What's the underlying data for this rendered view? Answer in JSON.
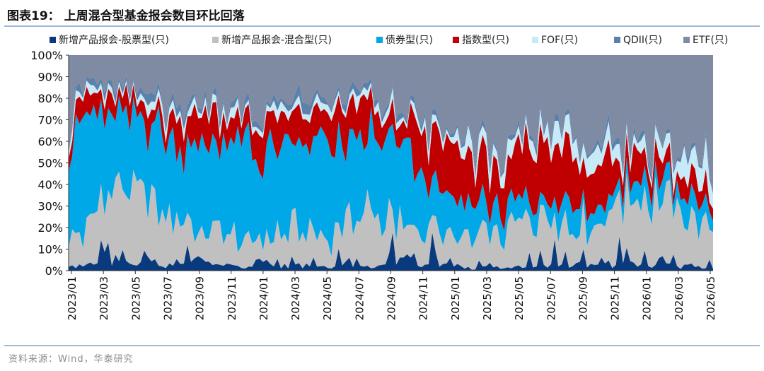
{
  "figure": {
    "title": "图表19：  上周混合型基金报会数目环比回落",
    "source": "资料来源：Wind，华泰研究"
  },
  "colors": {
    "stock": "#0a3a7e",
    "mixed": "#c0c0c0",
    "bond": "#00a8e8",
    "index": "#c00000",
    "fof": "#c7eaf8",
    "qdii": "#5b80aa",
    "etf": "#7f8aa3",
    "axis": "#333333",
    "rule": "#9fb8d4"
  },
  "chart_data": {
    "type": "area",
    "stacked": true,
    "percent_stacked": true,
    "title": "",
    "xlabel": "",
    "ylabel": "",
    "ylim": [
      0,
      100
    ],
    "y_ticks": [
      "0%",
      "10%",
      "20%",
      "30%",
      "40%",
      "50%",
      "60%",
      "70%",
      "80%",
      "90%",
      "100%"
    ],
    "x_ticks": [
      "2023/01",
      "2023/03",
      "2023/05",
      "2023/07",
      "2023/09",
      "2023/11",
      "2024/01",
      "2024/03",
      "2024/05",
      "2024/07",
      "2024/09",
      "2024/11",
      "2025/01",
      "2025/03",
      "2025/05",
      "2025/07",
      "2025/09",
      "2025/11",
      "2026/01",
      "2026/03",
      "2026/05"
    ],
    "legend_position": "top",
    "x_keyframes": [
      "2023/01",
      "2023/02",
      "2023/03",
      "2023/04",
      "2023/05",
      "2023/06",
      "2023/07",
      "2023/08",
      "2023/09",
      "2023/10",
      "2023/11",
      "2023/12",
      "2024/01",
      "2024/02",
      "2024/03",
      "2024/04",
      "2024/05",
      "2024/06",
      "2024/07",
      "2024/08",
      "2024/09",
      "2024/10",
      "2024/11",
      "2024/12",
      "2025/01",
      "2025/02",
      "2025/03",
      "2025/04",
      "2025/05",
      "2025/06",
      "2025/07",
      "2025/08",
      "2025/09",
      "2025/10",
      "2025/11",
      "2025/12",
      "2026/01",
      "2026/02",
      "2026/03",
      "2026/04",
      "2026/05"
    ],
    "series": [
      {
        "name": "新增产品报会-股票型(只)",
        "color_key": "stock",
        "values": [
          1,
          3,
          5,
          4,
          3,
          4,
          2,
          3,
          6,
          2,
          3,
          2,
          5,
          2,
          2,
          3,
          2,
          4,
          3,
          2,
          5,
          6,
          3,
          4,
          2,
          1,
          2,
          1,
          2,
          2,
          3,
          2,
          3,
          2,
          4,
          3,
          2,
          3,
          2,
          2,
          1
        ]
      },
      {
        "name": "新增产品报会-混合型(只)",
        "color_key": "mixed",
        "values": [
          10,
          15,
          28,
          35,
          38,
          24,
          26,
          18,
          12,
          15,
          14,
          12,
          10,
          15,
          18,
          16,
          14,
          18,
          22,
          25,
          20,
          12,
          14,
          15,
          13,
          12,
          12,
          16,
          20,
          24,
          22,
          18,
          20,
          22,
          26,
          34,
          30,
          28,
          26,
          22,
          18
        ]
      },
      {
        "name": "债券型(只)",
        "color_key": "bond",
        "values": [
          55,
          50,
          40,
          33,
          30,
          40,
          38,
          38,
          40,
          42,
          40,
          46,
          40,
          38,
          38,
          42,
          40,
          36,
          35,
          35,
          35,
          45,
          22,
          18,
          15,
          18,
          14,
          10,
          10,
          12,
          8,
          14,
          10,
          8,
          6,
          7,
          8,
          10,
          8,
          10,
          8
        ]
      },
      {
        "name": "指数型(只)",
        "color_key": "index",
        "values": [
          6,
          8,
          10,
          10,
          12,
          8,
          8,
          12,
          14,
          16,
          14,
          10,
          14,
          15,
          12,
          12,
          14,
          16,
          18,
          12,
          10,
          8,
          28,
          26,
          28,
          22,
          18,
          20,
          22,
          20,
          22,
          20,
          16,
          16,
          14,
          12,
          10,
          8,
          8,
          10,
          8
        ]
      },
      {
        "name": "FOF(只)",
        "color_key": "fof",
        "values": [
          3,
          4,
          3,
          3,
          2,
          3,
          4,
          3,
          3,
          3,
          4,
          3,
          3,
          4,
          3,
          3,
          4,
          3,
          4,
          3,
          4,
          3,
          4,
          3,
          4,
          5,
          6,
          6,
          6,
          6,
          6,
          8,
          10,
          8,
          6,
          5,
          4,
          6,
          8,
          10,
          12
        ]
      },
      {
        "name": "QDII(只)",
        "color_key": "qdii",
        "values": [
          2,
          3,
          2,
          3,
          2,
          3,
          2,
          3,
          2,
          3,
          2,
          3,
          2,
          3,
          6,
          3,
          2,
          3,
          2,
          3,
          2,
          3,
          2,
          2,
          2,
          2,
          2,
          2,
          2,
          3,
          2,
          2,
          2,
          2,
          3,
          2,
          2,
          2,
          2,
          2,
          2
        ]
      },
      {
        "name": "ETF(只)",
        "color_key": "etf",
        "values": [
          23,
          17,
          12,
          12,
          13,
          18,
          20,
          23,
          23,
          19,
          23,
          24,
          26,
          23,
          21,
          21,
          24,
          20,
          16,
          20,
          24,
          23,
          27,
          32,
          36,
          40,
          46,
          45,
          38,
          33,
          37,
          36,
          39,
          42,
          41,
          37,
          44,
          43,
          46,
          44,
          51
        ]
      }
    ]
  }
}
